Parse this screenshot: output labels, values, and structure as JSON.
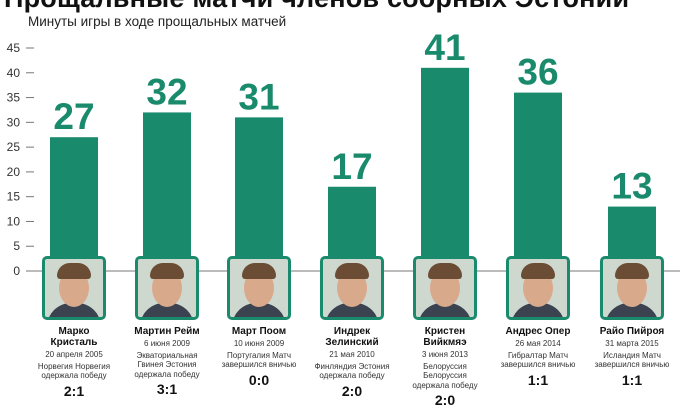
{
  "title": "Прощальные матчи членов сборных Эстонии",
  "chart_data": {
    "type": "bar",
    "title": "Прощальные матчи членов сборных Эстонии",
    "subtitle": "Минуты игры в ходе прощальных матчей",
    "ylim": [
      0,
      45
    ],
    "yticks": [
      0,
      5,
      10,
      15,
      20,
      25,
      30,
      35,
      40,
      45
    ],
    "grid": false,
    "categories": [
      "Марко Кристаль",
      "Мартин Рейм",
      "Март Поом",
      "Индрек Зелинский",
      "Кристен Вийкмяэ",
      "Андрес Опер",
      "Райо Пийроя"
    ],
    "values": [
      27,
      32,
      31,
      17,
      41,
      36,
      13
    ],
    "bar_color": "#1a8a6c",
    "label_color": "#1a8a6c"
  },
  "players": [
    {
      "name": "Марко Кристаль",
      "date": "20 апреля 2005",
      "details": "Норвегия Норвегия одержала победу",
      "score": "2:1"
    },
    {
      "name": "Мартин Рейм",
      "date": "6 июня 2009",
      "details": "Экваториальная Гвинея Эстония одержала победу",
      "score": "3:1"
    },
    {
      "name": "Март Поом",
      "date": "10 июня 2009",
      "details": "Португалия Матч завершился вничью",
      "score": "0:0"
    },
    {
      "name": "Индрек Зелинский",
      "date": "21 мая 2010",
      "details": "Финляндия Эстония одержала победу",
      "score": "2:0"
    },
    {
      "name": "Кристен Вийкмяэ",
      "date": "3 июня 2013",
      "details": "Белоруссия Белоруссия одержала победу",
      "score": "2:0"
    },
    {
      "name": "Андрес Опер",
      "date": "26 мая 2014",
      "details": "Гибралтар Матч завершился вничью",
      "score": "1:1"
    },
    {
      "name": "Райо Пийроя",
      "date": "31 марта 2015",
      "details": "Исландия Матч завершился вничью",
      "score": "1:1"
    }
  ]
}
